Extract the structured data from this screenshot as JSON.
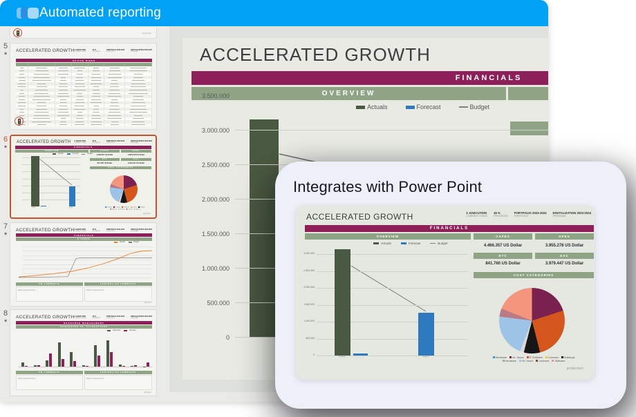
{
  "app": {
    "title": "Automated reporting"
  },
  "brand": "projectum",
  "colors": {
    "accent_blue": "#01A2F6",
    "maroon": "#8D2059",
    "sage": "#8FA385",
    "actuals_green": "#4A5941",
    "forecast_blue": "#2F7ABF",
    "budget_gray": "#7F7F7F",
    "selected_border": "#C4532F"
  },
  "slide_header_info": [
    {
      "value": "3. EXECUTION",
      "label": "CURRENT STAGE"
    },
    {
      "value": "45 %",
      "label": "PROGRESS"
    },
    {
      "value": "PORTFOLIO 2023-2024",
      "label": "PORTFOLIO"
    },
    {
      "value": "DIGITALIZATION 2023-2024",
      "label": "PROGRAM"
    }
  ],
  "sidebar": {
    "slides": [
      {
        "number": "5",
        "title": "ACCELERATED GROWTH",
        "banner": "ACTIVE RISKS",
        "type": "table",
        "row_count": 19
      },
      {
        "number": "6",
        "title": "ACCELERATED GROWTH",
        "banner": "FINANCIALS",
        "type": "financials",
        "selected": true
      },
      {
        "number": "7",
        "title": "ACCELERATED GROWTH",
        "banner": "FINANCIALS",
        "sub_banner": "S-CURVE",
        "type": "scurve",
        "legend": [
          {
            "label": "Actuals",
            "color": "#ED7D31"
          },
          {
            "label": "Budget",
            "color": "#7F7F7F"
          }
        ],
        "comment_headers": [
          "PM COMMENTS",
          "CONTROLLER COMMENTS"
        ],
        "comment_placeholder": "Write comment here...",
        "lines": {
          "budget": [
            [
              0,
              29.5
            ],
            [
              34,
              28.8
            ],
            [
              37,
              28.5
            ],
            [
              43,
              12.5
            ],
            [
              47,
              12
            ],
            [
              100,
              12
            ]
          ],
          "actuals": [
            [
              0,
              29
            ],
            [
              12,
              27.8
            ],
            [
              26,
              26.2
            ],
            [
              40,
              24
            ],
            [
              52,
              21
            ],
            [
              64,
              17
            ],
            [
              75,
              12.5
            ],
            [
              84,
              8
            ],
            [
              92,
              6
            ],
            [
              100,
              5.6
            ]
          ]
        }
      },
      {
        "number": "8",
        "title": "ACCELERATED GROWTH",
        "banner": "RESOURCE MANAGEMENT",
        "sub_banner": "REQUESTED VS. ALLOCATIONS",
        "type": "bars",
        "legend": [
          {
            "label": "Requested",
            "color": "#4A5941"
          },
          {
            "label": "Allocated",
            "color": "#8D2059"
          }
        ],
        "comment_headers": [
          "PM COMMENTS",
          "CONTROLLER COMMENTS"
        ],
        "comment_placeholder": "Write comment here...",
        "pairs": [
          [
            0.12,
            0.02
          ],
          [
            0.05,
            0.04
          ],
          [
            0.19,
            0.38
          ],
          [
            0.7,
            0.22
          ],
          [
            0.42,
            0.16
          ],
          [
            0.05,
            0.03
          ],
          [
            0.63,
            0.33
          ],
          [
            0.76,
            0.42
          ],
          [
            0.06,
            0.02
          ],
          [
            0.03,
            0.05
          ],
          [
            0.0,
            0.13
          ]
        ]
      }
    ]
  },
  "main_slide": {
    "title": "ACCELERATED GROWTH",
    "banner": "FINANCIALS",
    "overview_label": "OVERVIEW",
    "legend": [
      {
        "label": "Actuals",
        "color": "#4A5941",
        "type": "box"
      },
      {
        "label": "Forecast",
        "color": "#2F7ABF",
        "type": "box"
      },
      {
        "label": "Budget",
        "color": "#7F7F7F",
        "type": "line"
      }
    ],
    "y_ticks": [
      "3.500.000",
      "3.000.000",
      "2.500.000",
      "2.000.000",
      "1.500.000",
      "1.000.000",
      "500.000",
      "0"
    ]
  },
  "overlay": {
    "title": "Integrates with Power Point",
    "slide": {
      "title": "ACCELERATED GROWTH",
      "banner": "FINANCIALS",
      "sections": {
        "overview": "OVERVIEW",
        "capex": "CAPEX",
        "opex": "OPEX",
        "etc": "ETC",
        "eac": "EAC",
        "cost_categories": "COST CATEGORIES"
      },
      "values": {
        "capex": "4.466.357 US Dollar",
        "opex": "3.955.278 US Dollar",
        "etc": "841.760 US Dollar",
        "eac": "3.979.447 US Dollar"
      },
      "chart": {
        "y_ticks": [
          "3.000.000",
          "2.500.000",
          "2.000.000",
          "1.500.000",
          "1.000.000",
          "500.000",
          "0"
        ],
        "categories": [
          "2023",
          "2024"
        ]
      },
      "pie_legend_rows": [
        [
          {
            "label": "Hardware",
            "color": "#2E9BD6"
          },
          {
            "label": "Int. Hours",
            "color": "#7B2150"
          },
          {
            "label": "IT Software",
            "color": "#D4561D"
          },
          {
            "label": "Licenses",
            "color": "#F2C230"
          },
          {
            "label": "Buildings",
            "color": "#161616"
          }
        ],
        [
          {
            "label": "Hardware",
            "color": "#A8A8A8"
          },
          {
            "label": "Int. Hours",
            "color": "#9DC3E6"
          },
          {
            "label": "Licenses",
            "color": "#8A4A2F"
          },
          {
            "label": "Software",
            "color": "#F4967E"
          }
        ]
      ]
    }
  },
  "chart_data": [
    {
      "type": "bar",
      "title": "FINANCIALS — OVERVIEW",
      "categories": [
        "2023",
        "2024"
      ],
      "series": [
        {
          "name": "Actuals",
          "color": "#4A5941",
          "values": [
            3150000,
            0
          ]
        },
        {
          "name": "Forecast",
          "color": "#2F7ABF",
          "values": [
            55000,
            1270000
          ]
        },
        {
          "name": "Budget",
          "color": "#7F7F7F",
          "type": "line",
          "values": [
            2650000,
            1300000
          ]
        }
      ],
      "ylabel": "US Dollar",
      "ylim": [
        0,
        3500000
      ],
      "grid": true,
      "legend_position": "top"
    },
    {
      "type": "pie",
      "title": "COST CATEGORIES",
      "labels": [
        "Int. Hours",
        "IT Software",
        "Buildings",
        "Hardware",
        "Int. Hours 2",
        "Licenses",
        "Software"
      ],
      "values": [
        20,
        26,
        8,
        2,
        21,
        4,
        19
      ],
      "colors": [
        "#7B2150",
        "#D4561D",
        "#161616",
        "#D8D8D8",
        "#9DC3E6",
        "#B97C86",
        "#F4967E"
      ],
      "legend_position": "bottom"
    }
  ]
}
